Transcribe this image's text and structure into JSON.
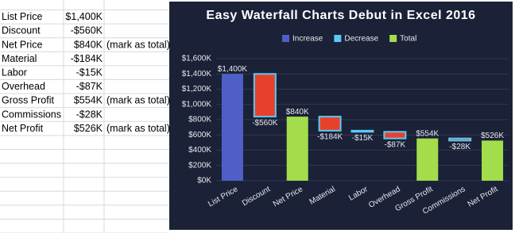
{
  "sheet": {
    "rows": [
      {
        "label": "List Price",
        "value": "$1,400K"
      },
      {
        "label": "Discount",
        "value": "-$560K"
      },
      {
        "label": "Net Price",
        "value": "$840K",
        "note": "(mark as total)"
      },
      {
        "label": "Material",
        "value": "-$184K"
      },
      {
        "label": "Labor",
        "value": "-$15K"
      },
      {
        "label": "Overhead",
        "value": "-$87K"
      },
      {
        "label": "Gross Profit",
        "value": "$554K",
        "note": "(mark as total)"
      },
      {
        "label": "Commissions",
        "value": "-$28K"
      },
      {
        "label": "Net Profit",
        "value": "$526K",
        "note": "(mark as total)"
      }
    ]
  },
  "chart_data": {
    "type": "waterfall",
    "title": "Easy Waterfall Charts Debut in Excel 2016",
    "categories": [
      "List Price",
      "Discount",
      "Net Price",
      "Material",
      "Labor",
      "Overhead",
      "Gross Profit",
      "Commissions",
      "Net Profit"
    ],
    "values": [
      1400,
      -560,
      840,
      -184,
      -15,
      -87,
      554,
      -28,
      526
    ],
    "value_labels": [
      "$1,400K",
      "-$560K",
      "$840K",
      "-$184K",
      "-$15K",
      "-$87K",
      "$554K",
      "-$28K",
      "$526K"
    ],
    "totals": [
      false,
      false,
      true,
      false,
      false,
      false,
      true,
      false,
      true
    ],
    "legend": [
      {
        "name": "Increase",
        "color": "#4f5fc8"
      },
      {
        "name": "Decrease",
        "color": "#e8412b",
        "border": "#5bc8f5"
      },
      {
        "name": "Total",
        "color": "#a3dd4b"
      }
    ],
    "ylim": [
      0,
      1600
    ],
    "yticks": [
      {
        "value": 0,
        "label": "$0K"
      },
      {
        "value": 200,
        "label": "$200K"
      },
      {
        "value": 400,
        "label": "$400K"
      },
      {
        "value": 600,
        "label": "$600K"
      },
      {
        "value": 800,
        "label": "$800K"
      },
      {
        "value": 1000,
        "label": "$1,000K"
      },
      {
        "value": 1200,
        "label": "$1,200K"
      },
      {
        "value": 1400,
        "label": "$1,400K"
      },
      {
        "value": 1600,
        "label": "$1,600K"
      }
    ],
    "grid": true
  }
}
